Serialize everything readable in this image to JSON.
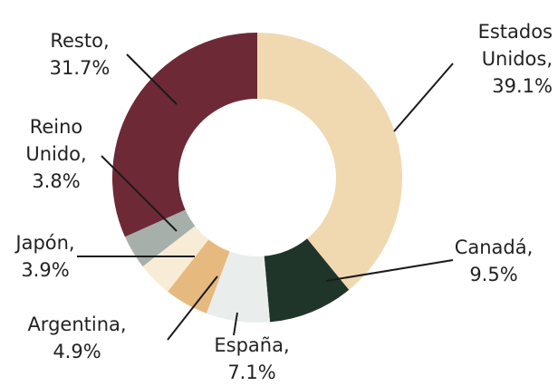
{
  "chart_data": {
    "type": "donut",
    "categories": [
      "Estados Unidos,",
      "Canadá,",
      "España,",
      "Argentina,",
      "Japón,",
      "Reino Unido,",
      "Resto,"
    ],
    "values": [
      39.1,
      9.5,
      7.1,
      4.9,
      3.9,
      3.8,
      31.7
    ],
    "value_labels": [
      "39.1%",
      "9.5%",
      "7.1%",
      "4.9%",
      "3.9%",
      "3.8%",
      "31.7%"
    ],
    "colors": [
      "#f0d9b0",
      "#20352a",
      "#e9eeec",
      "#e6b97e",
      "#f8ecd6",
      "#a7afab",
      "#6d2a36"
    ]
  }
}
